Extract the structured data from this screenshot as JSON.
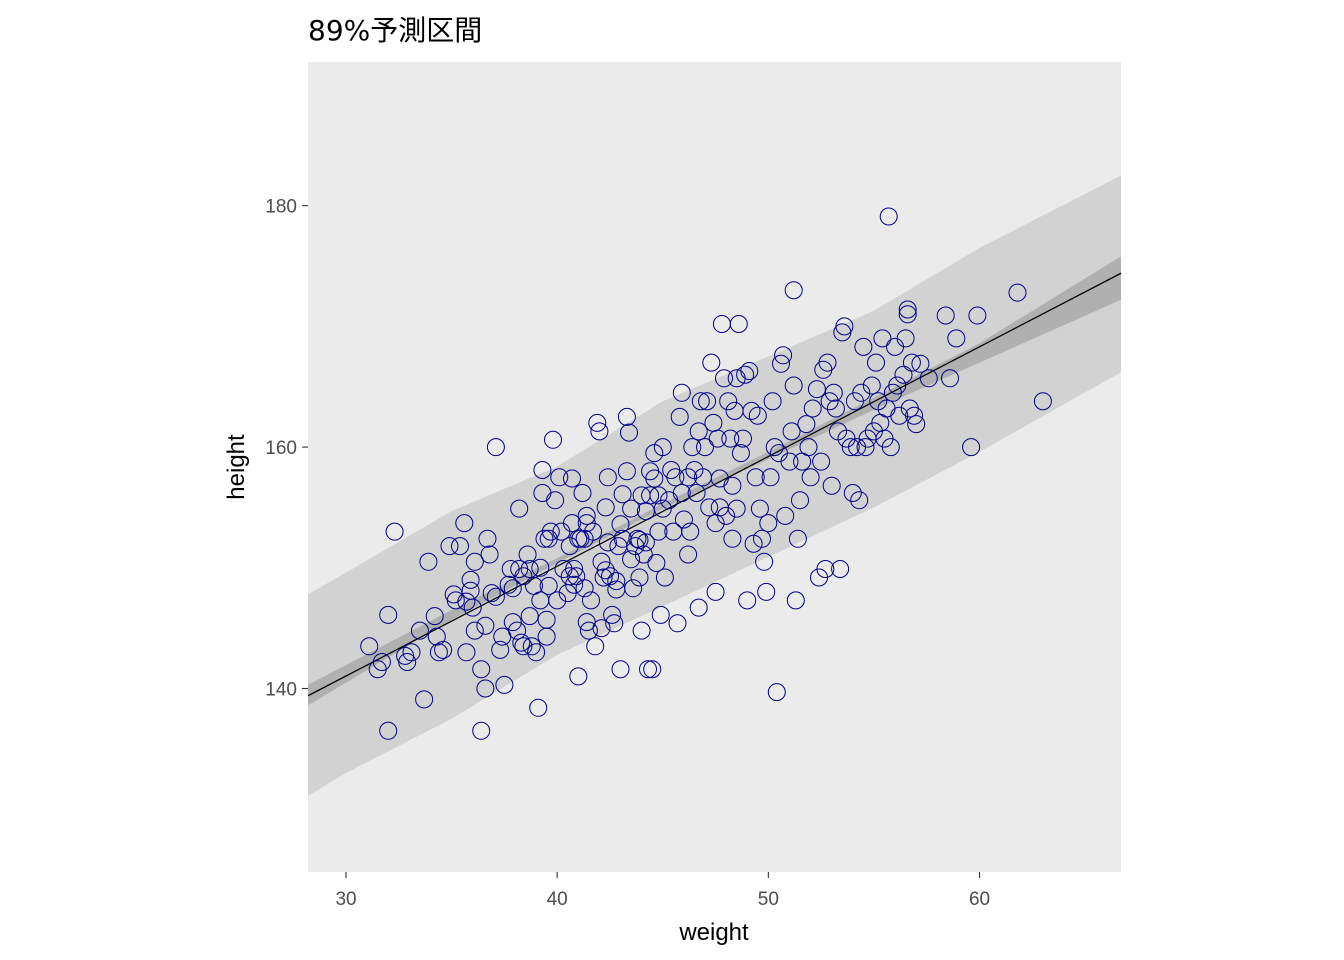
{
  "chart_data": {
    "type": "scatter",
    "title": "89%予測区間",
    "xlabel": "weight",
    "ylabel": "height",
    "xlim": [
      28.2,
      66.7
    ],
    "ylim": [
      124.8,
      191.9
    ],
    "x_ticks": [
      30,
      40,
      50,
      60
    ],
    "y_ticks": [
      140,
      160,
      180
    ],
    "grid": false,
    "colors": {
      "panel": "#ebebeb",
      "prediction_band": "#d2d2d2",
      "mean_band": "#b0b0b0",
      "line": "#000000",
      "points": "#00008b"
    },
    "regression_line": {
      "x": [
        28.2,
        66.7
      ],
      "y": [
        139.4,
        174.4
      ]
    },
    "mean_band": {
      "x": [
        28.2,
        35,
        40,
        45,
        50,
        55,
        60,
        66.7
      ],
      "lower": [
        138.6,
        145.7,
        150.4,
        154.9,
        159.0,
        163.1,
        167.0,
        172.2
      ],
      "upper": [
        140.3,
        146.5,
        150.8,
        155.3,
        159.6,
        164.1,
        168.6,
        175.8
      ]
    },
    "prediction_band": {
      "x": [
        28.2,
        30,
        35,
        40,
        45,
        50,
        55,
        60,
        66.7
      ],
      "lower": [
        131.1,
        133.0,
        137.5,
        142.8,
        146.8,
        150.9,
        155.0,
        159.6,
        166.2
      ],
      "upper": [
        147.8,
        149.6,
        154.7,
        158.4,
        163.8,
        167.5,
        171.3,
        176.5,
        182.5
      ]
    },
    "points": [
      [
        31.1,
        143.5
      ],
      [
        31.5,
        141.6
      ],
      [
        31.7,
        142.2
      ],
      [
        32.0,
        136.5
      ],
      [
        32.0,
        146.1
      ],
      [
        32.3,
        153.0
      ],
      [
        32.8,
        142.7
      ],
      [
        32.9,
        142.2
      ],
      [
        33.1,
        143.0
      ],
      [
        33.5,
        144.8
      ],
      [
        33.7,
        139.1
      ],
      [
        33.9,
        150.5
      ],
      [
        34.2,
        146.0
      ],
      [
        34.3,
        144.3
      ],
      [
        34.4,
        143.0
      ],
      [
        34.6,
        143.2
      ],
      [
        34.9,
        151.8
      ],
      [
        35.1,
        147.8
      ],
      [
        35.2,
        147.3
      ],
      [
        35.4,
        151.8
      ],
      [
        35.6,
        153.7
      ],
      [
        35.7,
        147.2
      ],
      [
        35.7,
        143.0
      ],
      [
        35.9,
        149.0
      ],
      [
        35.9,
        148.1
      ],
      [
        36.0,
        146.7
      ],
      [
        36.1,
        144.8
      ],
      [
        36.1,
        150.5
      ],
      [
        36.4,
        136.5
      ],
      [
        36.4,
        141.6
      ],
      [
        36.6,
        140.0
      ],
      [
        36.6,
        145.2
      ],
      [
        36.7,
        152.4
      ],
      [
        36.8,
        151.1
      ],
      [
        36.9,
        147.9
      ],
      [
        37.1,
        147.6
      ],
      [
        37.1,
        160.0
      ],
      [
        37.3,
        143.2
      ],
      [
        37.4,
        144.3
      ],
      [
        37.5,
        140.3
      ],
      [
        37.7,
        148.6
      ],
      [
        37.8,
        149.9
      ],
      [
        37.9,
        148.3
      ],
      [
        37.9,
        145.5
      ],
      [
        38.1,
        144.8
      ],
      [
        38.2,
        154.9
      ],
      [
        38.2,
        149.9
      ],
      [
        38.3,
        143.8
      ],
      [
        38.4,
        149.3
      ],
      [
        38.4,
        143.5
      ],
      [
        38.6,
        151.1
      ],
      [
        38.7,
        146.0
      ],
      [
        38.7,
        149.9
      ],
      [
        38.8,
        143.5
      ],
      [
        38.9,
        148.5
      ],
      [
        39.0,
        143.0
      ],
      [
        39.1,
        138.4
      ],
      [
        39.2,
        150.0
      ],
      [
        39.2,
        147.3
      ],
      [
        39.3,
        156.2
      ],
      [
        39.3,
        158.1
      ],
      [
        39.4,
        152.4
      ],
      [
        39.5,
        145.7
      ],
      [
        39.5,
        144.3
      ],
      [
        39.6,
        148.5
      ],
      [
        39.6,
        152.4
      ],
      [
        39.7,
        153.0
      ],
      [
        39.8,
        160.6
      ],
      [
        39.9,
        155.6
      ],
      [
        40.0,
        147.3
      ],
      [
        40.1,
        157.5
      ],
      [
        40.2,
        153.0
      ],
      [
        40.3,
        149.9
      ],
      [
        40.5,
        147.9
      ],
      [
        40.6,
        149.3
      ],
      [
        40.6,
        151.8
      ],
      [
        40.7,
        157.4
      ],
      [
        40.7,
        153.7
      ],
      [
        40.8,
        149.9
      ],
      [
        40.8,
        148.6
      ],
      [
        40.9,
        149.3
      ],
      [
        41.0,
        152.4
      ],
      [
        41.0,
        141.0
      ],
      [
        41.1,
        152.4
      ],
      [
        41.2,
        156.2
      ],
      [
        41.3,
        148.3
      ],
      [
        41.3,
        152.4
      ],
      [
        41.4,
        153.7
      ],
      [
        41.4,
        154.3
      ],
      [
        41.4,
        145.5
      ],
      [
        41.5,
        144.8
      ],
      [
        41.6,
        147.3
      ],
      [
        41.7,
        153.0
      ],
      [
        41.8,
        143.5
      ],
      [
        41.9,
        162.0
      ],
      [
        42.0,
        161.3
      ],
      [
        42.1,
        150.5
      ],
      [
        42.1,
        145.0
      ],
      [
        42.2,
        149.2
      ],
      [
        42.3,
        149.8
      ],
      [
        42.3,
        155.0
      ],
      [
        42.4,
        152.1
      ],
      [
        42.4,
        157.5
      ],
      [
        42.5,
        149.3
      ],
      [
        42.6,
        146.1
      ],
      [
        42.7,
        145.4
      ],
      [
        42.8,
        148.9
      ],
      [
        42.8,
        148.2
      ],
      [
        42.9,
        151.8
      ],
      [
        43.0,
        141.6
      ],
      [
        43.0,
        153.6
      ],
      [
        43.1,
        152.4
      ],
      [
        43.1,
        156.1
      ],
      [
        43.3,
        162.5
      ],
      [
        43.3,
        158.0
      ],
      [
        43.4,
        161.2
      ],
      [
        43.5,
        150.7
      ],
      [
        43.5,
        154.9
      ],
      [
        43.6,
        148.3
      ],
      [
        43.7,
        151.8
      ],
      [
        43.8,
        152.4
      ],
      [
        43.9,
        152.3
      ],
      [
        43.9,
        149.2
      ],
      [
        44.0,
        156.0
      ],
      [
        44.0,
        144.8
      ],
      [
        44.1,
        151.1
      ],
      [
        44.2,
        154.7
      ],
      [
        44.2,
        152.1
      ],
      [
        44.3,
        141.6
      ],
      [
        44.4,
        156.0
      ],
      [
        44.4,
        158.0
      ],
      [
        44.5,
        141.6
      ],
      [
        44.6,
        159.5
      ],
      [
        44.6,
        157.4
      ],
      [
        44.7,
        150.4
      ],
      [
        44.8,
        153.0
      ],
      [
        44.8,
        156.0
      ],
      [
        44.9,
        146.1
      ],
      [
        45.0,
        154.9
      ],
      [
        45.0,
        160.0
      ],
      [
        45.1,
        149.2
      ],
      [
        45.3,
        155.6
      ],
      [
        45.4,
        158.1
      ],
      [
        45.5,
        153.0
      ],
      [
        45.6,
        157.5
      ],
      [
        45.7,
        145.4
      ],
      [
        45.8,
        162.5
      ],
      [
        45.9,
        164.5
      ],
      [
        45.9,
        156.2
      ],
      [
        46.0,
        154.0
      ],
      [
        46.2,
        157.5
      ],
      [
        46.2,
        151.1
      ],
      [
        46.3,
        153.0
      ],
      [
        46.4,
        160.0
      ],
      [
        46.5,
        158.1
      ],
      [
        46.6,
        156.2
      ],
      [
        46.7,
        146.7
      ],
      [
        46.7,
        161.3
      ],
      [
        46.8,
        163.8
      ],
      [
        46.9,
        157.5
      ],
      [
        47.0,
        160.0
      ],
      [
        47.1,
        163.8
      ],
      [
        47.2,
        155.0
      ],
      [
        47.3,
        167.0
      ],
      [
        47.4,
        162.0
      ],
      [
        47.5,
        153.7
      ],
      [
        47.5,
        148.0
      ],
      [
        47.6,
        160.7
      ],
      [
        47.7,
        157.4
      ],
      [
        47.7,
        155.0
      ],
      [
        47.8,
        170.2
      ],
      [
        47.9,
        165.7
      ],
      [
        48.0,
        154.3
      ],
      [
        48.1,
        163.8
      ],
      [
        48.2,
        160.7
      ],
      [
        48.3,
        156.8
      ],
      [
        48.3,
        152.4
      ],
      [
        48.4,
        163.0
      ],
      [
        48.5,
        165.7
      ],
      [
        48.5,
        154.9
      ],
      [
        48.6,
        170.2
      ],
      [
        48.7,
        159.5
      ],
      [
        48.8,
        160.7
      ],
      [
        48.9,
        166.0
      ],
      [
        49.0,
        147.3
      ],
      [
        49.1,
        166.3
      ],
      [
        49.2,
        163.0
      ],
      [
        49.3,
        152.0
      ],
      [
        49.4,
        157.5
      ],
      [
        49.5,
        162.6
      ],
      [
        49.6,
        154.9
      ],
      [
        49.7,
        152.4
      ],
      [
        49.8,
        150.5
      ],
      [
        49.9,
        148.0
      ],
      [
        50.0,
        153.7
      ],
      [
        50.1,
        157.5
      ],
      [
        50.2,
        163.8
      ],
      [
        50.3,
        160.0
      ],
      [
        50.4,
        139.7
      ],
      [
        50.5,
        159.5
      ],
      [
        50.6,
        166.9
      ],
      [
        50.7,
        167.6
      ],
      [
        50.8,
        154.3
      ],
      [
        51.0,
        158.8
      ],
      [
        51.1,
        161.3
      ],
      [
        51.2,
        165.1
      ],
      [
        51.2,
        173.0
      ],
      [
        51.3,
        147.3
      ],
      [
        51.4,
        152.4
      ],
      [
        51.5,
        155.6
      ],
      [
        51.6,
        158.8
      ],
      [
        51.8,
        161.9
      ],
      [
        51.9,
        160.0
      ],
      [
        52.0,
        157.5
      ],
      [
        52.1,
        163.2
      ],
      [
        52.3,
        164.8
      ],
      [
        52.4,
        149.2
      ],
      [
        52.5,
        158.8
      ],
      [
        52.6,
        166.4
      ],
      [
        52.7,
        149.9
      ],
      [
        52.8,
        167.0
      ],
      [
        52.9,
        163.8
      ],
      [
        53.0,
        156.8
      ],
      [
        53.1,
        164.5
      ],
      [
        53.2,
        163.2
      ],
      [
        53.3,
        161.3
      ],
      [
        53.4,
        149.9
      ],
      [
        53.5,
        169.5
      ],
      [
        53.6,
        170.0
      ],
      [
        53.7,
        160.7
      ],
      [
        53.9,
        160.0
      ],
      [
        54.0,
        156.2
      ],
      [
        54.1,
        163.8
      ],
      [
        54.2,
        160.0
      ],
      [
        54.3,
        155.6
      ],
      [
        54.4,
        164.5
      ],
      [
        54.5,
        168.3
      ],
      [
        54.6,
        160.0
      ],
      [
        54.7,
        160.7
      ],
      [
        54.9,
        165.1
      ],
      [
        55.0,
        161.3
      ],
      [
        55.1,
        167.0
      ],
      [
        55.2,
        163.8
      ],
      [
        55.3,
        162.0
      ],
      [
        55.4,
        169.0
      ],
      [
        55.5,
        160.7
      ],
      [
        55.6,
        163.2
      ],
      [
        55.7,
        179.1
      ],
      [
        55.8,
        160.0
      ],
      [
        55.9,
        164.5
      ],
      [
        56.0,
        168.3
      ],
      [
        56.1,
        165.1
      ],
      [
        56.2,
        162.6
      ],
      [
        56.4,
        166.0
      ],
      [
        56.5,
        169.0
      ],
      [
        56.6,
        171.0
      ],
      [
        56.6,
        171.4
      ],
      [
        56.7,
        163.2
      ],
      [
        56.8,
        167.0
      ],
      [
        56.9,
        162.6
      ],
      [
        57.0,
        161.9
      ],
      [
        57.2,
        166.9
      ],
      [
        57.6,
        165.7
      ],
      [
        58.4,
        170.9
      ],
      [
        58.6,
        165.7
      ],
      [
        58.9,
        169.0
      ],
      [
        59.6,
        160.0
      ],
      [
        59.9,
        170.9
      ],
      [
        61.8,
        172.8
      ],
      [
        63.0,
        163.8
      ]
    ]
  }
}
